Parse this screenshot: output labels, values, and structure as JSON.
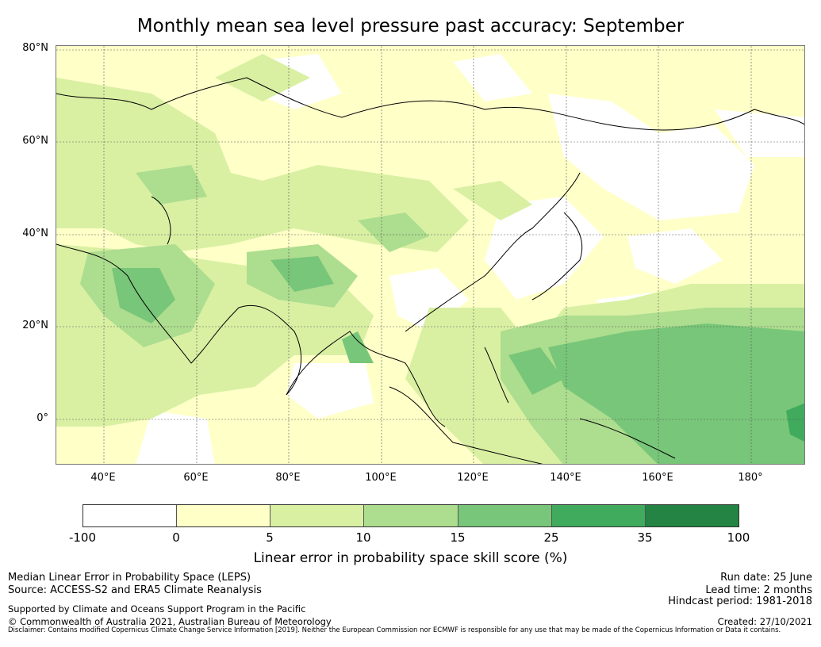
{
  "title": "Monthly mean sea level pressure past accuracy: September",
  "map": {
    "lat_labels": [
      "80°N",
      "60°N",
      "40°N",
      "20°N",
      "0°"
    ],
    "lon_labels": [
      "40°E",
      "60°E",
      "80°E",
      "100°E",
      "120°E",
      "140°E",
      "160°E",
      "180°"
    ],
    "background_color": "#ffffc8"
  },
  "colorbar": {
    "title": "Linear error in probability space skill score (%)",
    "ticks": [
      "-100",
      "0",
      "5",
      "10",
      "15",
      "25",
      "35",
      "100"
    ],
    "colors": [
      "#ffffff",
      "#ffffc8",
      "#d9f0a3",
      "#addd8e",
      "#78c679",
      "#41ab5d",
      "#238443"
    ]
  },
  "footer": {
    "line1": "Median Linear Error in Probability Space (LEPS)",
    "line2": "Source: ACCESS-S2 and ERA5 Climate Reanalysis",
    "line3": "Supported by Climate and Oceans Support Program in the Pacific",
    "line4": "© Commonwealth of Australia 2021, Australian Bureau of Meteorology",
    "run_date": "Run date: 25 June",
    "lead_time": "Lead time: 2 months",
    "hindcast": "Hindcast period: 1981-2018",
    "created": "Created: 27/10/2021",
    "disclaimer": "Disclaimer: Contains modified Copernicus Climate Change Service Information [2019]. Neither the European Commission nor ECMWF is responsible for any use that may be made of the Copernicus Information or Data it contains."
  }
}
